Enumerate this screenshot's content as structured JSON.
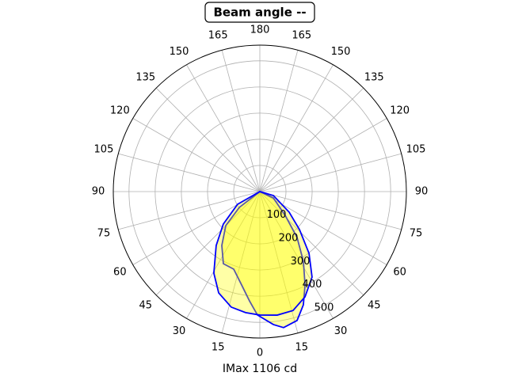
{
  "chart_data": {
    "type": "polar",
    "title": "Beam angle --",
    "xlabel": "IMax 1106 cd",
    "rlim": [
      0,
      560
    ],
    "rticks": [
      100,
      200,
      300,
      400,
      500
    ],
    "thetaticks": [
      0,
      15,
      30,
      45,
      60,
      75,
      90,
      105,
      120,
      135,
      150,
      165,
      180,
      {
        "value": -165,
        "label": "165"
      },
      {
        "value": -150,
        "label": "150"
      },
      {
        "value": -135,
        "label": "135"
      },
      {
        "value": -120,
        "label": "120"
      },
      {
        "value": -105,
        "label": "105"
      },
      {
        "value": -90,
        "label": "90"
      },
      {
        "value": -75,
        "label": "75"
      },
      {
        "value": -60,
        "label": "60"
      },
      {
        "value": -45,
        "label": "45"
      },
      {
        "value": -30,
        "label": "30"
      },
      {
        "value": -15,
        "label": "15"
      }
    ],
    "grid": true,
    "series": [
      {
        "color": "#0000ff",
        "fill": "#ffff00",
        "theta": [
          -90,
          -52.4,
          -45,
          -35.2,
          -26.8,
          -18.6,
          -11,
          -5.4,
          -1.1,
          5.8,
          9.9,
          16.1,
          21,
          25.8,
          32,
          39,
          46.8,
          64.8,
          90
        ],
        "values": [
          0,
          99,
          184,
          252,
          309,
          313,
          364,
          420,
          472,
          511,
          528,
          513,
          464,
          397,
          314,
          226,
          133,
          57,
          0
        ]
      },
      {
        "color": "#0000ff",
        "fill": "#ffff00",
        "theta": [
          -90,
          -60.3,
          -48.3,
          -39,
          -29.4,
          -22.1,
          -13.9,
          -6.7,
          0,
          8,
          15.6,
          23.2,
          31.4,
          38.5,
          46.2,
          54.9,
          73.6,
          90
        ],
        "values": [
          0,
          98,
          187,
          265,
          358,
          418,
          455,
          466,
          472,
          477,
          472,
          438,
          383,
          302,
          210,
          137,
          54,
          0
        ]
      }
    ]
  }
}
